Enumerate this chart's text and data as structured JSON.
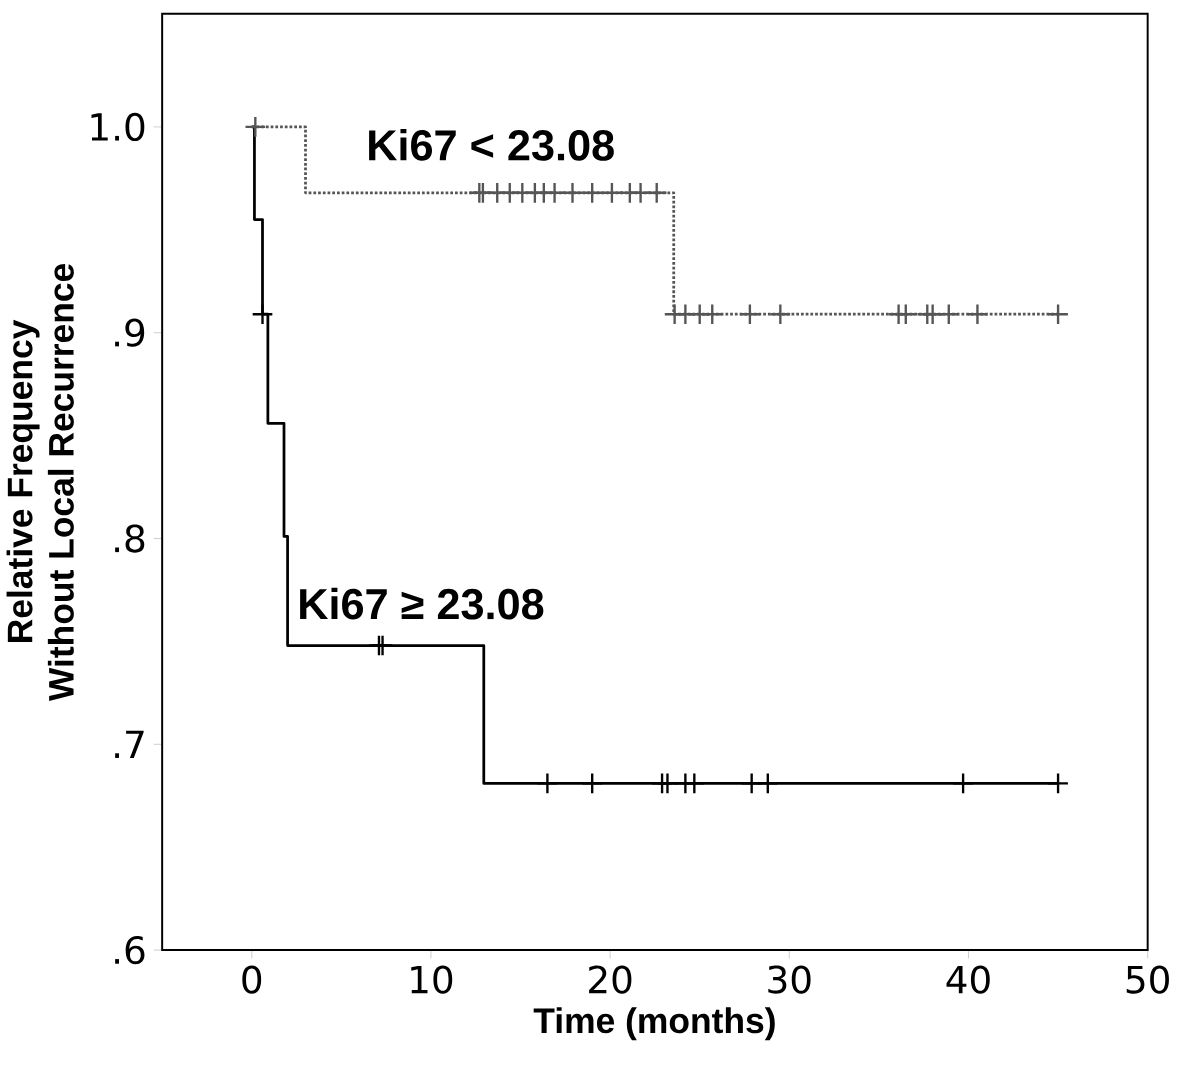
{
  "chart_data": {
    "type": "step",
    "xlabel": "Time (months)",
    "ylabel": "Relative Frequency\nWithout Local Recurrence",
    "xlim": [
      -5,
      50
    ],
    "ylim": [
      0.6,
      1.055
    ],
    "xticks": [
      0,
      10,
      20,
      30,
      40,
      50
    ],
    "yticks": [
      {
        "value": 0.6,
        "label": ".6"
      },
      {
        "value": 0.7,
        "label": ".7"
      },
      {
        "value": 0.8,
        "label": ".8"
      },
      {
        "value": 0.9,
        "label": ".9"
      },
      {
        "value": 1.0,
        "label": "1.0"
      }
    ],
    "series": [
      {
        "color": "#000000",
        "line_style": "solid",
        "marker": "none",
        "x": [
          0,
          0.15,
          0.6,
          0.9,
          1.8,
          2.0,
          12.95,
          45.0
        ],
        "values": [
          1.0,
          0.955,
          0.909,
          0.856,
          0.801,
          0.748,
          0.681,
          0.681
        ]
      },
      {
        "color": "#555555",
        "line_style": "dotted",
        "marker": "none",
        "x": [
          0,
          3.0,
          23.55,
          45.0
        ],
        "values": [
          1.0,
          0.968,
          0.909,
          0.909
        ]
      },
      {
        "type": "scatter",
        "color": "#000000",
        "marker": "cross",
        "x": [
          0.6,
          7.1,
          7.3,
          16.5,
          19.0,
          22.9,
          23.2,
          24.2,
          24.7,
          27.9,
          28.8,
          39.7,
          45.0
        ],
        "values": [
          0.909,
          0.748,
          0.748,
          0.681,
          0.681,
          0.681,
          0.681,
          0.681,
          0.681,
          0.681,
          0.681,
          0.681,
          0.681
        ]
      },
      {
        "type": "scatter",
        "color": "#555555",
        "marker": "cross",
        "x": [
          0.2,
          12.7,
          12.9,
          13.7,
          14.4,
          15.1,
          15.8,
          16.3,
          16.9,
          17.9,
          19.0,
          20.1,
          21.1,
          21.7,
          22.6,
          23.6,
          24.2,
          25.0,
          25.7,
          27.8,
          29.5,
          36.1,
          36.5,
          37.7,
          38.0,
          38.9,
          40.5,
          45.0
        ],
        "values": [
          1.0,
          0.968,
          0.968,
          0.968,
          0.968,
          0.968,
          0.968,
          0.968,
          0.968,
          0.968,
          0.968,
          0.968,
          0.968,
          0.968,
          0.968,
          0.909,
          0.909,
          0.909,
          0.909,
          0.909,
          0.909,
          0.909,
          0.909,
          0.909,
          0.909,
          0.909,
          0.909,
          0.909
        ]
      }
    ],
    "annotations": [
      "Ki67 < 23.08",
      "Ki67 ≥ 23.08"
    ]
  }
}
